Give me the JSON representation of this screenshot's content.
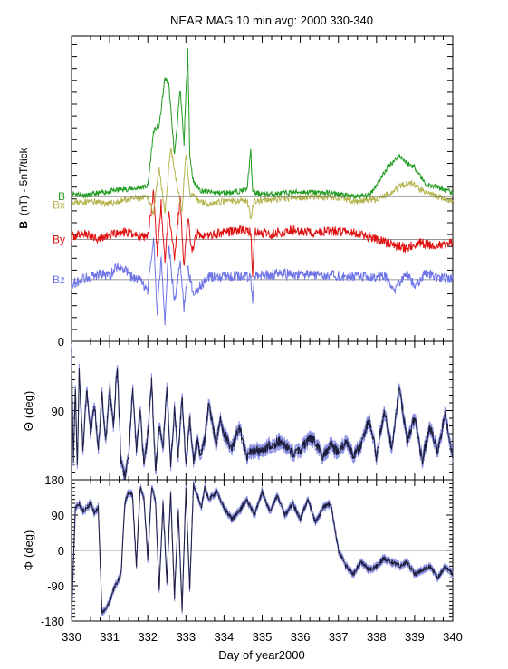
{
  "chart_data": [
    {
      "type": "line",
      "title": "NEAR MAG 10 min avg: 2000 330-340",
      "ylabel_prefix": "B",
      "ylabel_rest": "(nT) - 5nT/tick",
      "ylim_ticks": [
        "0"
      ],
      "xlim": [
        330,
        340
      ],
      "colors": {
        "B": "#1e9a1e",
        "Bx": "#b5b44f",
        "By": "#e01010",
        "Bz": "#6e74e8"
      },
      "series": [
        {
          "name": "B",
          "baseline_ticks": 12.2,
          "x": [
            330.0,
            330.4,
            330.9,
            331.3,
            331.7,
            332.0,
            332.15,
            332.3,
            332.45,
            332.55,
            332.7,
            332.85,
            332.95,
            333.05,
            333.1,
            333.2,
            333.4,
            333.8,
            334.3,
            334.6,
            334.7,
            334.75,
            334.8,
            335.2,
            336.0,
            336.8,
            337.4,
            337.8,
            338.0,
            338.3,
            338.6,
            338.8,
            339.0,
            339.3,
            339.6,
            340.0
          ],
          "y": [
            0.3,
            0.1,
            0.4,
            0.6,
            0.7,
            0.9,
            5.5,
            6.0,
            10.0,
            9.5,
            3.5,
            9.0,
            4.5,
            12.5,
            3.5,
            1.2,
            0.5,
            0.3,
            0.4,
            0.6,
            3.8,
            0.6,
            0.3,
            0.2,
            0.4,
            0.3,
            0.0,
            0.1,
            1.0,
            2.5,
            3.5,
            2.8,
            2.5,
            1.0,
            0.8,
            0.3
          ]
        },
        {
          "name": "Bx",
          "baseline_ticks": 11.5,
          "x": [
            330.0,
            330.5,
            331.0,
            331.5,
            332.0,
            332.15,
            332.3,
            332.45,
            332.6,
            332.75,
            332.9,
            333.0,
            333.1,
            333.3,
            333.6,
            334.0,
            334.6,
            334.7,
            334.8,
            335.5,
            336.2,
            337.0,
            337.5,
            338.0,
            338.3,
            338.6,
            338.9,
            339.2,
            339.6,
            340.0
          ],
          "y": [
            0.2,
            0.3,
            0.1,
            0.5,
            0.6,
            -0.6,
            3.0,
            -0.8,
            5.0,
            2.0,
            -0.6,
            4.5,
            1.0,
            0.4,
            0.1,
            0.3,
            0.4,
            -1.0,
            0.3,
            0.5,
            0.7,
            0.6,
            0.3,
            0.4,
            0.9,
            1.6,
            1.9,
            1.2,
            0.7,
            0.3
          ]
        },
        {
          "name": "By",
          "baseline_ticks": 8.6,
          "x": [
            330.0,
            330.3,
            330.7,
            331.0,
            331.4,
            331.8,
            332.0,
            332.15,
            332.25,
            332.35,
            332.45,
            332.55,
            332.7,
            332.85,
            332.95,
            333.05,
            333.15,
            333.3,
            333.6,
            334.0,
            334.5,
            334.7,
            334.75,
            334.8,
            335.2,
            335.8,
            336.3,
            336.8,
            337.3,
            337.8,
            338.2,
            338.5,
            338.8,
            339.1,
            339.5,
            340.0
          ],
          "y": [
            0.2,
            0.5,
            0.1,
            0.3,
            0.6,
            0.3,
            0.4,
            3.8,
            -1.2,
            3.0,
            -2.0,
            2.5,
            -1.5,
            3.5,
            -2.5,
            2.0,
            -1.0,
            0.5,
            0.3,
            0.6,
            0.8,
            0.6,
            -3.0,
            0.6,
            0.4,
            0.8,
            0.5,
            0.7,
            0.6,
            0.2,
            -0.2,
            -0.5,
            -0.7,
            -0.3,
            -0.5,
            -0.3
          ]
        },
        {
          "name": "Bz",
          "baseline_ticks": 5.2,
          "x": [
            330.0,
            330.4,
            330.8,
            331.0,
            331.2,
            331.4,
            331.6,
            331.8,
            332.0,
            332.15,
            332.25,
            332.35,
            332.45,
            332.55,
            332.7,
            332.85,
            332.95,
            333.05,
            333.2,
            333.4,
            333.6,
            334.0,
            334.5,
            334.7,
            334.75,
            334.8,
            335.4,
            336.0,
            336.8,
            337.4,
            337.8,
            338.2,
            338.5,
            338.8,
            339.0,
            339.3,
            339.6,
            340.0
          ],
          "y": [
            -0.4,
            0.2,
            0.5,
            0.3,
            1.2,
            0.8,
            0.2,
            -0.1,
            -1.0,
            3.5,
            -2.8,
            2.0,
            -3.5,
            3.0,
            -2.0,
            1.5,
            -2.5,
            1.0,
            -1.2,
            -0.5,
            0.2,
            0.3,
            0.3,
            0.2,
            -2.0,
            0.3,
            0.5,
            0.4,
            0.4,
            0.3,
            0.2,
            0.4,
            -0.8,
            0.5,
            -0.6,
            0.6,
            0.2,
            0.1
          ]
        }
      ]
    },
    {
      "type": "line",
      "ylabel_symbol": "Θ",
      "ylabel_rest": "(deg)",
      "yticks": [
        "90"
      ],
      "ylim": [
        0,
        180
      ],
      "colors": {
        "line": "#1e1e3c",
        "band": "#8e94e6"
      },
      "series": [
        {
          "x": [
            330.0,
            330.05,
            330.1,
            330.15,
            330.2,
            330.3,
            330.4,
            330.5,
            330.6,
            330.7,
            330.8,
            330.9,
            331.0,
            331.1,
            331.2,
            331.3,
            331.4,
            331.5,
            331.6,
            331.7,
            331.8,
            331.9,
            332.0,
            332.1,
            332.2,
            332.3,
            332.4,
            332.5,
            332.6,
            332.7,
            332.8,
            332.9,
            333.0,
            333.1,
            333.2,
            333.3,
            333.4,
            333.5,
            333.6,
            333.7,
            333.8,
            333.9,
            334.0,
            334.2,
            334.4,
            334.6,
            334.8,
            335.0,
            335.2,
            335.5,
            335.8,
            336.0,
            336.3,
            336.6,
            336.8,
            337.0,
            337.2,
            337.4,
            337.6,
            337.8,
            338.0,
            338.2,
            338.4,
            338.6,
            338.8,
            339.0,
            339.2,
            339.4,
            339.6,
            339.8,
            340.0
          ],
          "y": [
            15,
            160,
            55,
            165,
            40,
            140,
            60,
            120,
            80,
            140,
            70,
            130,
            60,
            110,
            30,
            160,
            175,
            150,
            60,
            140,
            90,
            160,
            120,
            50,
            170,
            110,
            140,
            60,
            160,
            90,
            150,
            70,
            165,
            100,
            155,
            130,
            150,
            125,
            80,
            110,
            135,
            100,
            120,
            140,
            110,
            150,
            140,
            145,
            135,
            130,
            145,
            140,
            125,
            150,
            135,
            145,
            130,
            150,
            135,
            100,
            150,
            90,
            140,
            60,
            130,
            100,
            155,
            110,
            145,
            95,
            150
          ]
        }
      ]
    },
    {
      "type": "line",
      "ylabel_symbol": "Φ",
      "ylabel_rest": "(deg)",
      "yticks": [
        "180",
        "90",
        "0",
        "-90",
        "-180"
      ],
      "ylim": [
        -180,
        180
      ],
      "xticks": [
        "330",
        "331",
        "332",
        "333",
        "334",
        "335",
        "336",
        "337",
        "338",
        "339",
        "340"
      ],
      "xlabel": "Day of year2000",
      "colors": {
        "line": "#1e1e3c",
        "band": "#8e94e6"
      },
      "series": [
        {
          "x": [
            330.0,
            330.1,
            330.2,
            330.3,
            330.4,
            330.5,
            330.6,
            330.7,
            330.8,
            330.9,
            331.0,
            331.1,
            331.2,
            331.3,
            331.4,
            331.5,
            331.6,
            331.7,
            331.8,
            331.9,
            332.0,
            332.1,
            332.2,
            332.3,
            332.4,
            332.5,
            332.6,
            332.7,
            332.8,
            332.9,
            333.0,
            333.1,
            333.2,
            333.3,
            333.4,
            333.5,
            333.6,
            333.8,
            334.0,
            334.2,
            334.4,
            334.6,
            334.8,
            335.0,
            335.2,
            335.4,
            335.6,
            335.8,
            336.0,
            336.2,
            336.4,
            336.6,
            336.8,
            337.0,
            337.2,
            337.4,
            337.6,
            337.8,
            338.0,
            338.2,
            338.4,
            338.6,
            338.8,
            339.0,
            339.2,
            339.4,
            339.6,
            339.8,
            340.0
          ],
          "y": [
            -170,
            110,
            120,
            100,
            110,
            120,
            95,
            110,
            -160,
            -150,
            -130,
            -100,
            -80,
            -60,
            120,
            150,
            140,
            -40,
            160,
            130,
            -20,
            160,
            130,
            -100,
            120,
            -80,
            150,
            -120,
            100,
            -150,
            160,
            -100,
            170,
            140,
            110,
            160,
            130,
            150,
            110,
            80,
            100,
            130,
            90,
            150,
            100,
            140,
            90,
            120,
            80,
            130,
            70,
            110,
            120,
            0,
            -40,
            -60,
            -30,
            -50,
            -40,
            -20,
            -30,
            -40,
            -30,
            -60,
            -50,
            -40,
            -70,
            -40,
            -60
          ]
        }
      ]
    }
  ]
}
